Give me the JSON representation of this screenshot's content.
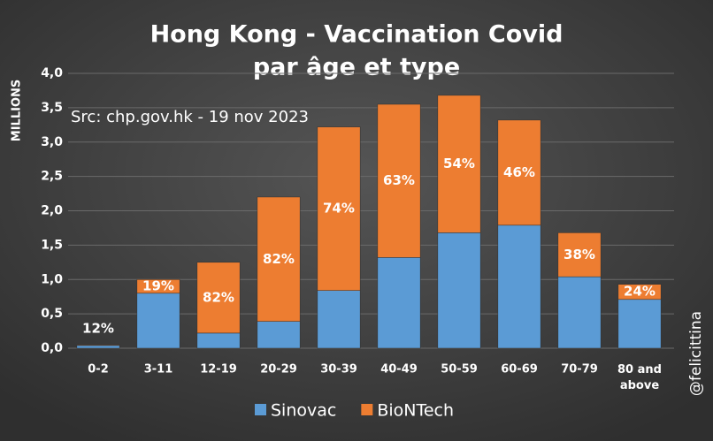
{
  "chart_data": {
    "type": "stacked_bar",
    "title": "Hong Kong - Vaccination Covid",
    "subtitle": "par âge et type",
    "source": "Src: chp.gov.hk - 19 nov 2023",
    "y_label": "MILLIONS",
    "watermark": "@felicittina",
    "categories": [
      "0-2",
      "3-11",
      "12-19",
      "20-29",
      "30-39",
      "40-49",
      "50-59",
      "60-69",
      "70-79",
      "80 and above"
    ],
    "series": [
      {
        "name": "Sinovac",
        "color": "#5b9bd5",
        "values": [
          0.04,
          0.8,
          0.22,
          0.39,
          0.84,
          1.32,
          1.68,
          1.79,
          1.04,
          0.71
        ]
      },
      {
        "name": "BioNTech",
        "color": "#ed7d31",
        "values": [
          0.01,
          0.2,
          1.03,
          1.81,
          2.38,
          2.23,
          2.0,
          1.53,
          0.64,
          0.22
        ]
      }
    ],
    "share_labels": [
      "12%",
      "19%",
      "82%",
      "82%",
      "74%",
      "63%",
      "54%",
      "46%",
      "38%",
      "24%"
    ],
    "ylim": [
      0,
      4
    ],
    "yticks": [
      {
        "value": 0,
        "label": "0,0"
      },
      {
        "value": 0.5,
        "label": "0,5"
      },
      {
        "value": 1,
        "label": "1,0"
      },
      {
        "value": 1.5,
        "label": "1,5"
      },
      {
        "value": 2,
        "label": "2,0"
      },
      {
        "value": 2.5,
        "label": "2,5"
      },
      {
        "value": 3,
        "label": "3,0"
      },
      {
        "value": 3.5,
        "label": "3,5"
      },
      {
        "value": 4,
        "label": "4,0"
      }
    ],
    "grid": true,
    "legend": "bottom"
  }
}
